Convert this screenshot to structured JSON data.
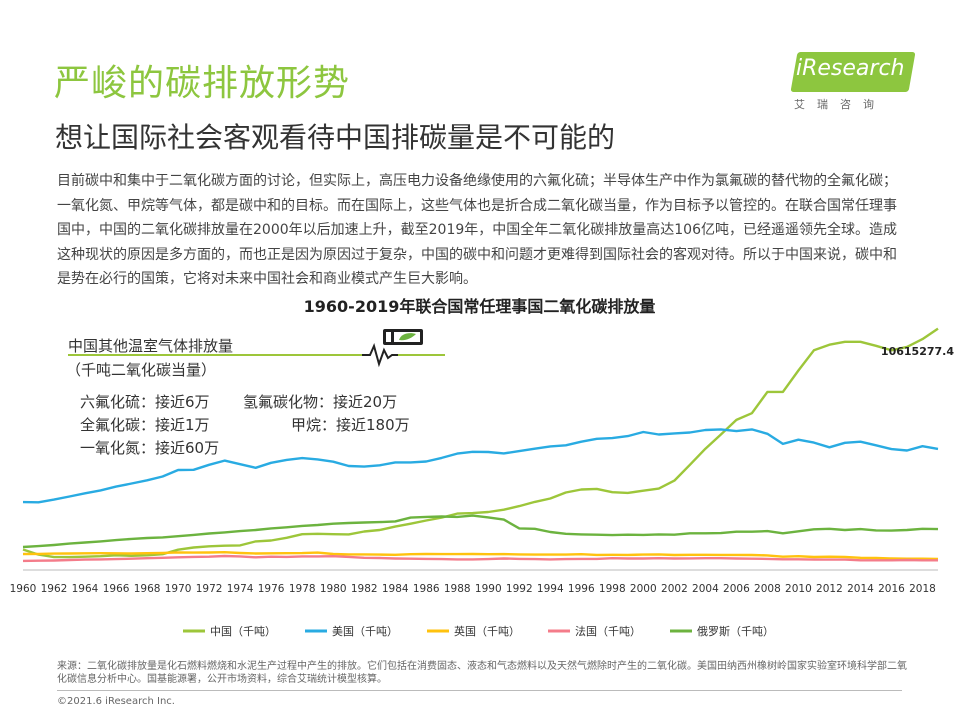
{
  "title": "严峻的碳排放形势",
  "subtitle": "想让国际社会客观看待中国排碳量是不可能的",
  "logo": {
    "word": "iResearch",
    "cn": "艾瑞咨询"
  },
  "intro": "目前碳中和集中于二氧化碳方面的讨论，但实际上，高压电力设备绝缘使用的六氟化硫；半导体生产中作为氯氟碳的替代物的全氟化碳；一氧化氮、甲烷等气体，都是碳中和的目标。而在国际上，这些气体也是折合成二氧化碳当量，作为目标予以管控的。在联合国常任理事国中，中国的二氧化碳排放量在2000年以后加速上升，截至2019年，中国全年二氧化碳排放量高达106亿吨，已经遥遥领先全球。造成这种现状的原因是多方面的，而也正是因为原因过于复杂，中国的碳中和问题才更难得到国际社会的客观对待。所以于中国来说，碳中和是势在必行的国策，它将对未来中国社会和商业模式产生巨大影响。",
  "other_gases": {
    "title": "中国其他温室气体排放量",
    "unit": "（千吨二氧化碳当量）",
    "items": [
      "六氟化硫：接近6万",
      "氢氟碳化物：接近20万",
      "全氟化碳：接近1万",
      "甲烷：接近180万",
      "一氧化氮：接近60万"
    ]
  },
  "chart_data": {
    "type": "line",
    "title": "1960-2019年联合国常任理事国二氧化碳排放量",
    "annotation": "10615277.4",
    "x_tick_labels": [
      "1960",
      "1962",
      "1964",
      "1966",
      "1968",
      "1970",
      "1972",
      "1974",
      "1976",
      "1978",
      "1980",
      "1982",
      "1984",
      "1986",
      "1988",
      "1990",
      "1992",
      "1994",
      "1996",
      "1998",
      "2000",
      "2002",
      "2004",
      "2006",
      "2008",
      "2010",
      "2012",
      "2014",
      "2016",
      "2018"
    ],
    "x": [
      1960,
      1961,
      1962,
      1963,
      1964,
      1965,
      1966,
      1967,
      1968,
      1969,
      1970,
      1971,
      1972,
      1973,
      1974,
      1975,
      1976,
      1977,
      1978,
      1979,
      1980,
      1981,
      1982,
      1983,
      1984,
      1985,
      1986,
      1987,
      1988,
      1989,
      1990,
      1991,
      1992,
      1993,
      1994,
      1995,
      1996,
      1997,
      1998,
      1999,
      2000,
      2001,
      2002,
      2003,
      2004,
      2005,
      2006,
      2007,
      2008,
      2009,
      2010,
      2011,
      2012,
      2013,
      2014,
      2015,
      2016,
      2017,
      2018,
      2019
    ],
    "ylim": [
      0,
      11000000
    ],
    "legend_position": "bottom",
    "series": [
      {
        "name": "中国（千吨）",
        "color": "#9dc63a",
        "values": [
          780000,
          550000,
          440000,
          440000,
          460000,
          480000,
          520000,
          500000,
          520000,
          570000,
          770000,
          870000,
          920000,
          950000,
          960000,
          1140000,
          1180000,
          1300000,
          1460000,
          1480000,
          1460000,
          1450000,
          1580000,
          1650000,
          1800000,
          1930000,
          2070000,
          2200000,
          2380000,
          2400000,
          2450000,
          2550000,
          2710000,
          2900000,
          3050000,
          3320000,
          3450000,
          3480000,
          3330000,
          3300000,
          3400000,
          3490000,
          3850000,
          4550000,
          5270000,
          5900000,
          6550000,
          6850000,
          7800000,
          7800000,
          8750000,
          9650000,
          9900000,
          10030000,
          10030000,
          9850000,
          9650000,
          9800000,
          10150000,
          10615277
        ]
      },
      {
        "name": "美国（千吨）",
        "color": "#29abe2",
        "values": [
          2890000,
          2880000,
          3000000,
          3140000,
          3280000,
          3410000,
          3580000,
          3720000,
          3860000,
          4030000,
          4320000,
          4330000,
          4550000,
          4740000,
          4580000,
          4420000,
          4640000,
          4770000,
          4850000,
          4790000,
          4690000,
          4500000,
          4470000,
          4530000,
          4660000,
          4660000,
          4700000,
          4860000,
          5050000,
          5130000,
          5120000,
          5060000,
          5160000,
          5270000,
          5370000,
          5420000,
          5580000,
          5710000,
          5740000,
          5830000,
          6010000,
          5900000,
          5950000,
          5990000,
          6100000,
          6130000,
          6050000,
          6130000,
          5930000,
          5480000,
          5670000,
          5540000,
          5330000,
          5530000,
          5580000,
          5420000,
          5250000,
          5190000,
          5380000,
          5260000
        ]
      },
      {
        "name": "英国（千吨）",
        "color": "#ffc20e",
        "values": [
          580000,
          585000,
          595000,
          600000,
          610000,
          615000,
          610000,
          600000,
          615000,
          630000,
          650000,
          640000,
          645000,
          660000,
          625000,
          600000,
          610000,
          615000,
          620000,
          640000,
          580000,
          560000,
          560000,
          550000,
          545000,
          570000,
          580000,
          575000,
          575000,
          580000,
          570000,
          575000,
          560000,
          550000,
          550000,
          550000,
          570000,
          540000,
          545000,
          540000,
          550000,
          560000,
          535000,
          545000,
          545000,
          540000,
          540000,
          535000,
          515000,
          460000,
          480000,
          445000,
          460000,
          450000,
          410000,
          400000,
          380000,
          370000,
          370000,
          360000
        ]
      },
      {
        "name": "法国（千吨）",
        "color": "#f47c8a",
        "values": [
          270000,
          280000,
          290000,
          310000,
          330000,
          340000,
          350000,
          370000,
          390000,
          410000,
          430000,
          450000,
          460000,
          490000,
          470000,
          430000,
          460000,
          450000,
          470000,
          470000,
          480000,
          450000,
          410000,
          400000,
          380000,
          370000,
          360000,
          350000,
          340000,
          340000,
          350000,
          380000,
          360000,
          350000,
          340000,
          350000,
          360000,
          360000,
          390000,
          380000,
          380000,
          390000,
          380000,
          385000,
          390000,
          390000,
          380000,
          370000,
          360000,
          345000,
          345000,
          330000,
          330000,
          330000,
          300000,
          300000,
          300000,
          310000,
          300000,
          300000
        ]
      },
      {
        "name": "俄罗斯（千吨）",
        "color": "#6cb33f",
        "values": [
          890000,
          930000,
          980000,
          1040000,
          1090000,
          1140000,
          1200000,
          1250000,
          1290000,
          1320000,
          1370000,
          1430000,
          1490000,
          1540000,
          1600000,
          1650000,
          1720000,
          1770000,
          1830000,
          1870000,
          1930000,
          1960000,
          1980000,
          2000000,
          2030000,
          2200000,
          2230000,
          2250000,
          2230000,
          2290000,
          2210000,
          2110000,
          1720000,
          1700000,
          1560000,
          1480000,
          1450000,
          1440000,
          1420000,
          1440000,
          1430000,
          1450000,
          1440000,
          1500000,
          1500000,
          1510000,
          1570000,
          1570000,
          1600000,
          1500000,
          1590000,
          1680000,
          1700000,
          1650000,
          1690000,
          1630000,
          1620000,
          1650000,
          1700000,
          1690000
        ]
      }
    ]
  },
  "source": "来源：二氧化碳排放量是化石燃料燃烧和水泥生产过程中产生的排放。它们包括在消费固态、液态和气态燃料以及天然气燃除时产生的二氧化碳。美国田纳西州橡树岭国家实验室环境科学部二氧化碳信息分析中心。国基能源署，公开市场资料，综合艾瑞统计模型核算。",
  "copyright": "©2021.6 iResearch Inc."
}
